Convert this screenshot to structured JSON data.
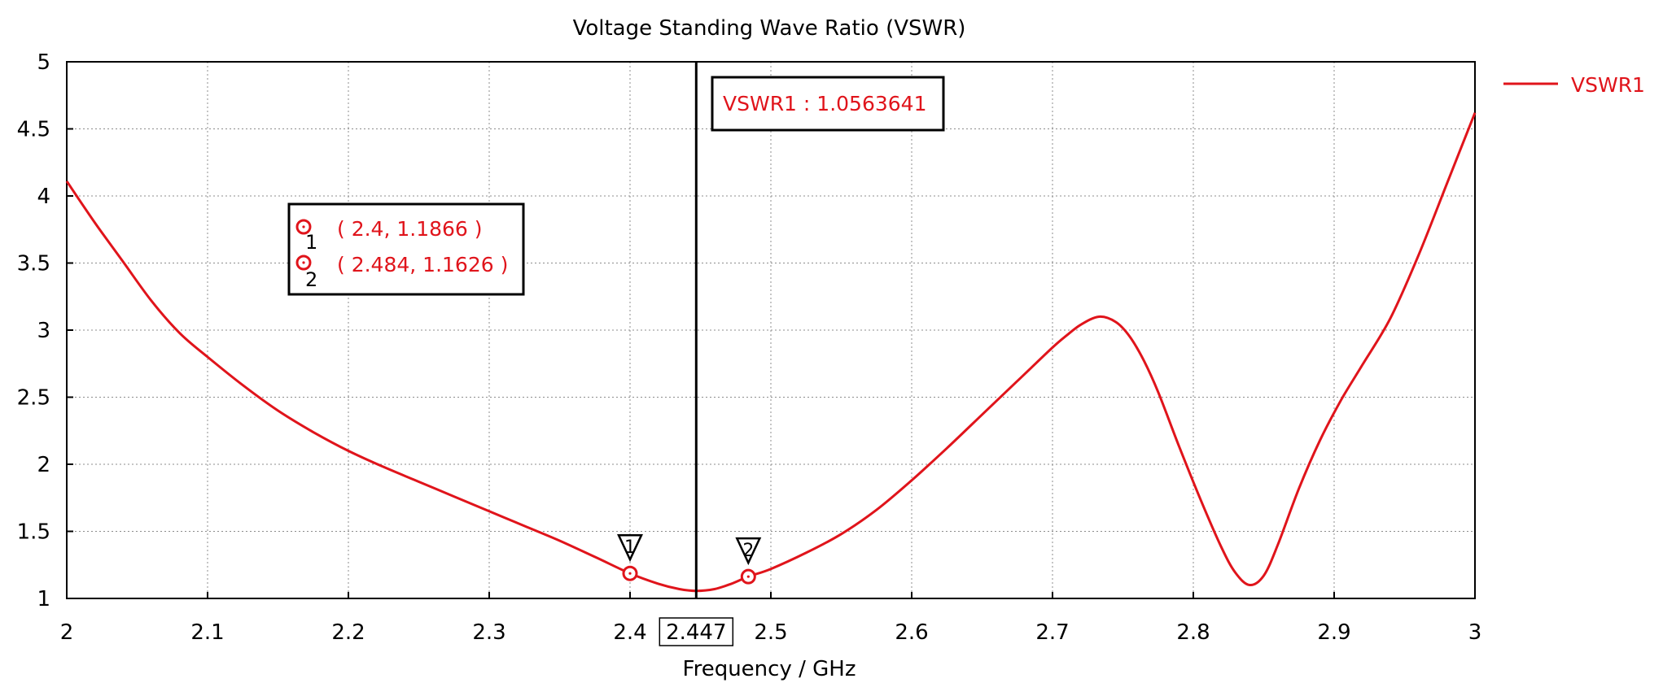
{
  "chart_data": {
    "type": "line",
    "title": "Voltage Standing Wave Ratio (VSWR)",
    "xlabel": "Frequency / GHz",
    "ylabel": "",
    "xlim": [
      2,
      3
    ],
    "ylim": [
      1,
      5
    ],
    "x_ticks": [
      2,
      2.1,
      2.2,
      2.3,
      2.4,
      2.5,
      2.6,
      2.7,
      2.8,
      2.9,
      3
    ],
    "x_tick_labels": [
      "2",
      "2.1",
      "2.2",
      "2.3",
      "2.4",
      "2.5",
      "2.6",
      "2.7",
      "2.8",
      "2.9",
      "3"
    ],
    "y_ticks": [
      1,
      1.5,
      2,
      2.5,
      3,
      3.5,
      4,
      4.5,
      5
    ],
    "y_tick_labels": [
      "1",
      "1.5",
      "2",
      "2.5",
      "3",
      "3.5",
      "4",
      "4.5",
      "5"
    ],
    "grid": true,
    "legend_position": "top-right",
    "series": [
      {
        "name": "VSWR1",
        "color": "#e0141b",
        "points": [
          [
            2.0,
            4.11
          ],
          [
            2.02,
            3.8
          ],
          [
            2.04,
            3.51
          ],
          [
            2.06,
            3.22
          ],
          [
            2.08,
            2.98
          ],
          [
            2.1,
            2.8
          ],
          [
            2.125,
            2.59
          ],
          [
            2.15,
            2.4
          ],
          [
            2.175,
            2.24
          ],
          [
            2.2,
            2.1
          ],
          [
            2.225,
            1.98
          ],
          [
            2.25,
            1.87
          ],
          [
            2.275,
            1.76
          ],
          [
            2.3,
            1.65
          ],
          [
            2.325,
            1.54
          ],
          [
            2.35,
            1.43
          ],
          [
            2.375,
            1.31
          ],
          [
            2.4,
            1.1866
          ],
          [
            2.42,
            1.11
          ],
          [
            2.435,
            1.07
          ],
          [
            2.447,
            1.0563641
          ],
          [
            2.46,
            1.07
          ],
          [
            2.472,
            1.11
          ],
          [
            2.484,
            1.1626
          ],
          [
            2.5,
            1.22
          ],
          [
            2.525,
            1.34
          ],
          [
            2.55,
            1.48
          ],
          [
            2.575,
            1.66
          ],
          [
            2.6,
            1.88
          ],
          [
            2.625,
            2.12
          ],
          [
            2.65,
            2.37
          ],
          [
            2.675,
            2.62
          ],
          [
            2.7,
            2.87
          ],
          [
            2.71,
            2.96
          ],
          [
            2.72,
            3.04
          ],
          [
            2.733,
            3.1
          ],
          [
            2.745,
            3.06
          ],
          [
            2.755,
            2.95
          ],
          [
            2.765,
            2.77
          ],
          [
            2.775,
            2.54
          ],
          [
            2.79,
            2.13
          ],
          [
            2.805,
            1.74
          ],
          [
            2.82,
            1.38
          ],
          [
            2.83,
            1.19
          ],
          [
            2.84,
            1.1
          ],
          [
            2.85,
            1.17
          ],
          [
            2.86,
            1.4
          ],
          [
            2.875,
            1.82
          ],
          [
            2.89,
            2.18
          ],
          [
            2.905,
            2.48
          ],
          [
            2.92,
            2.74
          ],
          [
            2.94,
            3.09
          ],
          [
            2.96,
            3.56
          ],
          [
            2.98,
            4.09
          ],
          [
            3.0,
            4.62
          ]
        ]
      }
    ],
    "markers": [
      {
        "label": "1",
        "x": 2.4,
        "y": 1.1866
      },
      {
        "label": "2",
        "x": 2.484,
        "y": 1.1626
      }
    ],
    "marker_readout": [
      {
        "label": "1",
        "text": "( 2.4, 1.1866 )"
      },
      {
        "label": "2",
        "text": "( 2.484, 1.1626 )"
      }
    ],
    "cursor": {
      "x": 2.447,
      "x_label": "2.447",
      "readout": "VSWR1 : 1.0563641"
    }
  }
}
